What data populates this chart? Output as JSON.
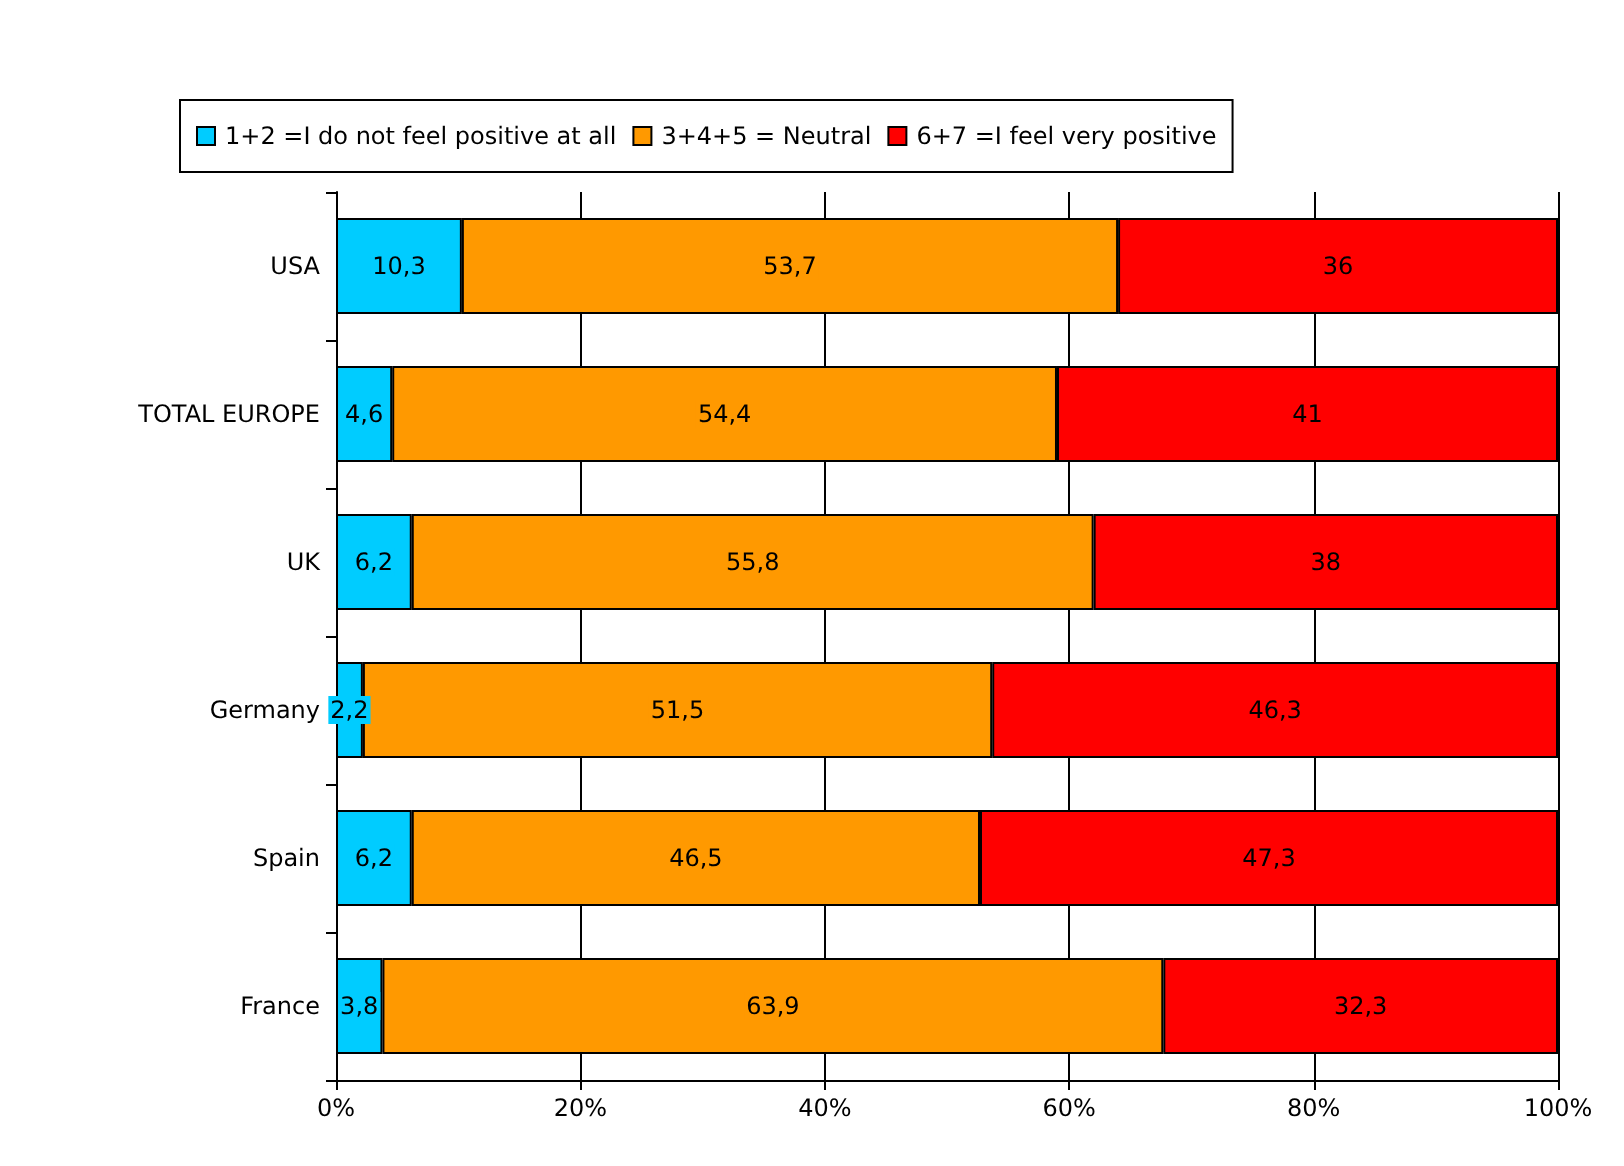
{
  "chart_data": {
    "type": "bar",
    "orientation": "horizontal",
    "stacked": true,
    "categories": [
      "USA",
      "TOTAL EUROPE",
      "UK",
      "Germany",
      "Spain",
      "France"
    ],
    "series": [
      {
        "name": "1+2 =I do not feel positive at all",
        "color": "#00ccff",
        "values": [
          10.3,
          4.6,
          6.2,
          2.2,
          6.2,
          3.8
        ],
        "value_labels": [
          "10,3",
          "4,6",
          "6,2",
          "2,2",
          "6,2",
          "3,8"
        ]
      },
      {
        "name": "3+4+5 = Neutral",
        "color": "#ff9900",
        "values": [
          53.7,
          54.4,
          55.8,
          51.5,
          46.5,
          63.9
        ],
        "value_labels": [
          "53,7",
          "54,4",
          "55,8",
          "51,5",
          "46,5",
          "63,9"
        ]
      },
      {
        "name": "6+7 =I feel very positive",
        "color": "#ff0000",
        "values": [
          36,
          41,
          38,
          46.3,
          47.3,
          32.3
        ],
        "value_labels": [
          "36",
          "41",
          "38",
          "46,3",
          "47,3",
          "32,3"
        ]
      }
    ],
    "xlim": [
      0,
      100
    ],
    "xticks": [
      {
        "value": 0,
        "label": "0%"
      },
      {
        "value": 20,
        "label": "20%"
      },
      {
        "value": 40,
        "label": "40%"
      },
      {
        "value": 60,
        "label": "60%"
      },
      {
        "value": 80,
        "label": "80%"
      },
      {
        "value": 100,
        "label": "100%"
      }
    ],
    "grid": "x",
    "legend": "top"
  }
}
